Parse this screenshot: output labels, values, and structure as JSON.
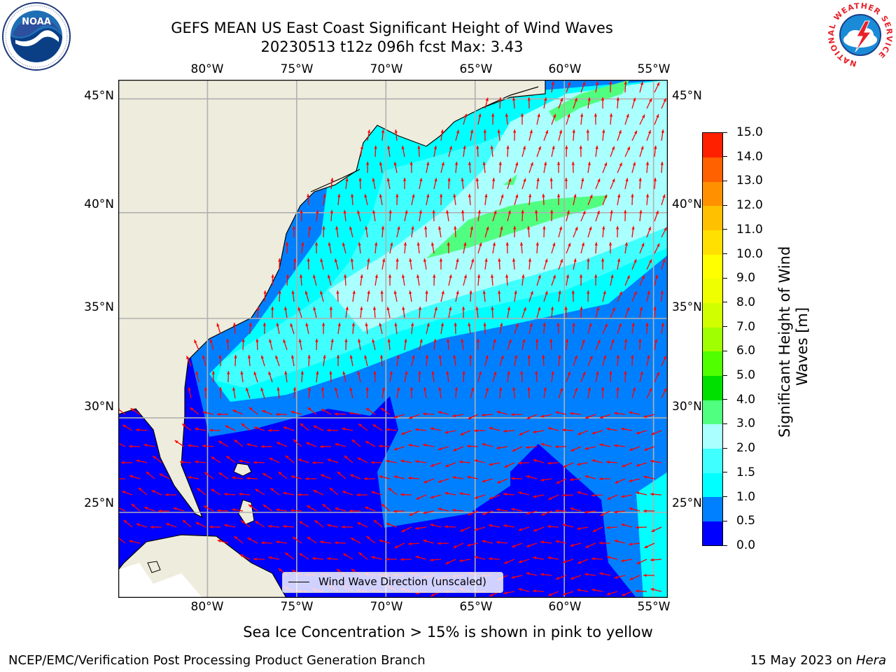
{
  "title": {
    "line1": "GEFS MEAN US East Coast Significant Height of Wind Waves",
    "line2": "20230513 t12z 096h fcst   Max: 3.43"
  },
  "logos": {
    "left": {
      "name": "NOAA",
      "text": "NOAA",
      "ring_text": "NATIONAL OCEANIC AND ATMOSPHERIC ADMINISTRATION · U.S. DEPARTMENT OF COMMERCE"
    },
    "right": {
      "name": "National Weather Service",
      "ring_text": "NATIONAL WEATHER SERVICE"
    }
  },
  "map": {
    "lon_labels": [
      "80°W",
      "75°W",
      "70°W",
      "65°W",
      "60°W",
      "55°W"
    ],
    "lat_labels": [
      "45°N",
      "40°N",
      "35°N",
      "30°N",
      "25°N"
    ],
    "extent": {
      "lon_min": -85,
      "lon_max": -54.2,
      "lat_min": 20.3,
      "lat_max": 45.8
    },
    "legend_label": "Wind Wave Direction (unscaled)",
    "colors": {
      "land": "#eeecdc",
      "coast": "#000000",
      "arrows": "#ff0000",
      "grid": "#b0b0b0"
    }
  },
  "colorbar": {
    "label_line1": "Significant Height of Wind",
    "label_line2": "Waves [m]",
    "ticks": [
      "0.0",
      "0.5",
      "1.0",
      "1.5",
      "2.0",
      "3.0",
      "4.0",
      "5.0",
      "6.0",
      "7.0",
      "8.0",
      "9.0",
      "10.0",
      "11.0",
      "12.0",
      "13.0",
      "14.0",
      "15.0"
    ],
    "colors": [
      "#0000ff",
      "#0080ff",
      "#00ffff",
      "#40ffff",
      "#aaffff",
      "#50ff80",
      "#00e000",
      "#50ff00",
      "#a0ff00",
      "#d0ff00",
      "#f0ff00",
      "#ffff00",
      "#ffe000",
      "#ffc000",
      "#ff9000",
      "#ff6000",
      "#ff2000"
    ]
  },
  "note": "Sea Ice Concentration > 15% is shown in pink to yellow",
  "footer": {
    "left": "NCEP/EMC/Verification Post Processing Product Generation Branch",
    "date": "15 May 2023 on ",
    "machine": "Hera"
  }
}
